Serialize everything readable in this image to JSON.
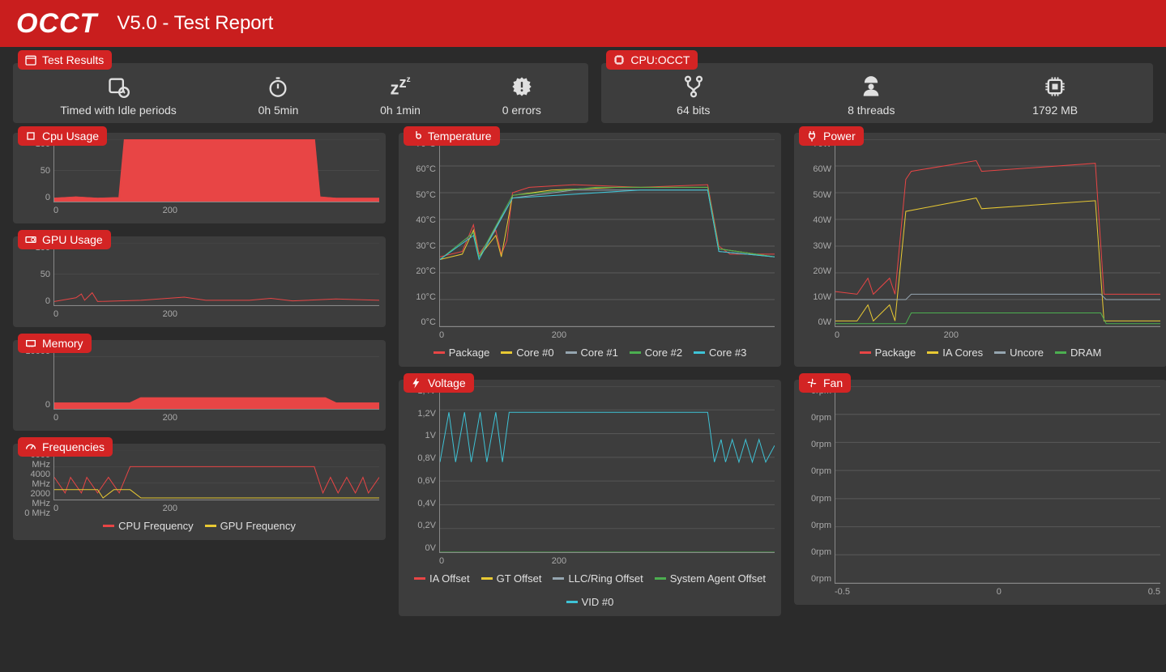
{
  "header": {
    "logo": "OCCT",
    "subtitle": "V5.0 - Test Report"
  },
  "colors": {
    "header_bg": "#c91e1e",
    "badge_bg": "#d32424",
    "panel_bg": "#3d3d3d",
    "page_bg": "#2b2b2b",
    "text": "#e0e0e0",
    "series_red": "#e84545",
    "series_yellow": "#e8c933",
    "series_cyan": "#3ec3d6",
    "series_green": "#4caf50",
    "series_gray": "#95a5b0",
    "grid": "#555555"
  },
  "test_results": {
    "title": "Test Results",
    "items": [
      {
        "icon": "calendar-clock",
        "label": "Timed with Idle periods"
      },
      {
        "icon": "stopwatch",
        "label": "0h 5min"
      },
      {
        "icon": "sleep",
        "label": "0h 1min"
      },
      {
        "icon": "alert",
        "label": "0 errors"
      }
    ]
  },
  "cpu_occt": {
    "title": "CPU:OCCT",
    "items": [
      {
        "icon": "branch",
        "label": "64 bits"
      },
      {
        "icon": "worker",
        "label": "8 threads"
      },
      {
        "icon": "chip",
        "label": "1792 MB"
      }
    ]
  },
  "charts": {
    "cpu_usage": {
      "title": "Cpu Usage",
      "type": "area",
      "ylim": [
        0,
        100
      ],
      "yticks": [
        0,
        50,
        100
      ],
      "xlim": [
        0,
        300
      ],
      "xticks": [
        0,
        200
      ],
      "series": [
        {
          "name": "cpu",
          "color": "#e84545",
          "fill": true,
          "data": [
            [
              0,
              6
            ],
            [
              20,
              8
            ],
            [
              40,
              6
            ],
            [
              60,
              7
            ],
            [
              65,
              100
            ],
            [
              240,
              100
            ],
            [
              245,
              8
            ],
            [
              260,
              6
            ],
            [
              300,
              6
            ]
          ]
        }
      ]
    },
    "gpu_usage": {
      "title": "GPU Usage",
      "type": "line",
      "ylim": [
        0,
        100
      ],
      "yticks": [
        0,
        50,
        100
      ],
      "xlim": [
        0,
        300
      ],
      "xticks": [
        0,
        200
      ],
      "series": [
        {
          "name": "gpu",
          "color": "#e84545",
          "data": [
            [
              0,
              6
            ],
            [
              20,
              12
            ],
            [
              25,
              18
            ],
            [
              28,
              8
            ],
            [
              35,
              20
            ],
            [
              40,
              6
            ],
            [
              80,
              8
            ],
            [
              120,
              13
            ],
            [
              140,
              8
            ],
            [
              180,
              8
            ],
            [
              200,
              11
            ],
            [
              220,
              7
            ],
            [
              260,
              10
            ],
            [
              300,
              8
            ]
          ]
        }
      ]
    },
    "memory": {
      "title": "Memory",
      "type": "area",
      "ylim": [
        0,
        12000
      ],
      "yticks": [
        0,
        10000
      ],
      "xlim": [
        0,
        300
      ],
      "xticks": [
        0,
        200
      ],
      "series": [
        {
          "name": "mem",
          "color": "#e84545",
          "fill": true,
          "data": [
            [
              0,
              1200
            ],
            [
              70,
              1200
            ],
            [
              80,
              2200
            ],
            [
              250,
              2200
            ],
            [
              260,
              1200
            ],
            [
              300,
              1200
            ]
          ]
        }
      ]
    },
    "frequencies": {
      "title": "Frequencies",
      "type": "line",
      "ylim": [
        0,
        6000
      ],
      "yticks": [
        0,
        2000,
        4000,
        6000
      ],
      "ylabel_suffix": " MHz",
      "xlim": [
        0,
        300
      ],
      "xticks": [
        0,
        200
      ],
      "legend": [
        {
          "label": "CPU Frequency",
          "color": "#e84545"
        },
        {
          "label": "GPU Frequency",
          "color": "#e8c933"
        }
      ],
      "series": [
        {
          "name": "cpu_freq",
          "color": "#e84545",
          "data": [
            [
              0,
              2700
            ],
            [
              10,
              800
            ],
            [
              15,
              2700
            ],
            [
              25,
              800
            ],
            [
              30,
              2700
            ],
            [
              40,
              800
            ],
            [
              50,
              2700
            ],
            [
              60,
              800
            ],
            [
              70,
              4000
            ],
            [
              240,
              4000
            ],
            [
              248,
              800
            ],
            [
              255,
              2700
            ],
            [
              262,
              800
            ],
            [
              270,
              2700
            ],
            [
              278,
              800
            ],
            [
              285,
              2700
            ],
            [
              290,
              800
            ],
            [
              300,
              2700
            ]
          ]
        },
        {
          "name": "gpu_freq",
          "color": "#e8c933",
          "data": [
            [
              0,
              1200
            ],
            [
              40,
              1200
            ],
            [
              45,
              200
            ],
            [
              55,
              1200
            ],
            [
              70,
              1200
            ],
            [
              80,
              200
            ],
            [
              300,
              200
            ]
          ]
        }
      ]
    },
    "temperature": {
      "title": "Temperature",
      "type": "line",
      "ylim": [
        0,
        70
      ],
      "yticks": [
        0,
        10,
        20,
        30,
        40,
        50,
        60,
        70
      ],
      "ylabel_suffix": "°C",
      "xlim": [
        0,
        300
      ],
      "xticks": [
        0,
        200
      ],
      "legend": [
        {
          "label": "Package",
          "color": "#e84545"
        },
        {
          "label": "Core #0",
          "color": "#e8c933"
        },
        {
          "label": "Core #1",
          "color": "#95a5b0"
        },
        {
          "label": "Core #2",
          "color": "#4caf50"
        },
        {
          "label": "Core #3",
          "color": "#3ec3d6"
        }
      ],
      "series": [
        {
          "name": "pkg",
          "color": "#e84545",
          "data": [
            [
              0,
              26
            ],
            [
              20,
              28
            ],
            [
              30,
              38
            ],
            [
              35,
              27
            ],
            [
              50,
              36
            ],
            [
              55,
              27
            ],
            [
              60,
              32
            ],
            [
              65,
              50
            ],
            [
              80,
              52
            ],
            [
              120,
              53
            ],
            [
              180,
              52
            ],
            [
              240,
              53
            ],
            [
              250,
              30
            ],
            [
              260,
              27
            ],
            [
              300,
              27
            ]
          ]
        },
        {
          "name": "c0",
          "color": "#e8c933",
          "data": [
            [
              0,
              25
            ],
            [
              20,
              27
            ],
            [
              30,
              36
            ],
            [
              35,
              26
            ],
            [
              50,
              34
            ],
            [
              55,
              26
            ],
            [
              65,
              49
            ],
            [
              100,
              51
            ],
            [
              160,
              52
            ],
            [
              240,
              52
            ],
            [
              250,
              29
            ],
            [
              300,
              26
            ]
          ]
        },
        {
          "name": "c1",
          "color": "#95a5b0",
          "data": [
            [
              0,
              25
            ],
            [
              30,
              35
            ],
            [
              35,
              26
            ],
            [
              65,
              48
            ],
            [
              120,
              51
            ],
            [
              240,
              51
            ],
            [
              250,
              28
            ],
            [
              300,
              26
            ]
          ]
        },
        {
          "name": "c2",
          "color": "#4caf50",
          "data": [
            [
              0,
              25
            ],
            [
              30,
              35
            ],
            [
              35,
              26
            ],
            [
              65,
              49
            ],
            [
              140,
              52
            ],
            [
              240,
              52
            ],
            [
              250,
              29
            ],
            [
              300,
              26
            ]
          ]
        },
        {
          "name": "c3",
          "color": "#3ec3d6",
          "data": [
            [
              0,
              25
            ],
            [
              30,
              34
            ],
            [
              35,
              25
            ],
            [
              65,
              48
            ],
            [
              180,
              51
            ],
            [
              240,
              51
            ],
            [
              250,
              28
            ],
            [
              300,
              26
            ]
          ]
        }
      ]
    },
    "power": {
      "title": "Power",
      "type": "line",
      "ylim": [
        0,
        70
      ],
      "yticks": [
        0,
        10,
        20,
        30,
        40,
        50,
        60,
        70
      ],
      "ylabel_suffix": "W",
      "xlim": [
        0,
        300
      ],
      "xticks": [
        0,
        200
      ],
      "legend": [
        {
          "label": "Package",
          "color": "#e84545"
        },
        {
          "label": "IA Cores",
          "color": "#e8c933"
        },
        {
          "label": "Uncore",
          "color": "#95a5b0"
        },
        {
          "label": "DRAM",
          "color": "#4caf50"
        }
      ],
      "series": [
        {
          "name": "pkg",
          "color": "#e84545",
          "data": [
            [
              0,
              13
            ],
            [
              20,
              12
            ],
            [
              30,
              18
            ],
            [
              35,
              12
            ],
            [
              50,
              18
            ],
            [
              55,
              12
            ],
            [
              65,
              55
            ],
            [
              70,
              58
            ],
            [
              130,
              62
            ],
            [
              135,
              58
            ],
            [
              240,
              61
            ],
            [
              248,
              12
            ],
            [
              300,
              12
            ]
          ]
        },
        {
          "name": "ia",
          "color": "#e8c933",
          "data": [
            [
              0,
              2
            ],
            [
              20,
              2
            ],
            [
              30,
              8
            ],
            [
              35,
              2
            ],
            [
              50,
              8
            ],
            [
              55,
              2
            ],
            [
              65,
              43
            ],
            [
              130,
              48
            ],
            [
              135,
              44
            ],
            [
              240,
              47
            ],
            [
              248,
              2
            ],
            [
              300,
              2
            ]
          ]
        },
        {
          "name": "uncore",
          "color": "#95a5b0",
          "data": [
            [
              0,
              10
            ],
            [
              65,
              10
            ],
            [
              70,
              12
            ],
            [
              245,
              12
            ],
            [
              250,
              10
            ],
            [
              300,
              10
            ]
          ]
        },
        {
          "name": "dram",
          "color": "#4caf50",
          "data": [
            [
              0,
              1
            ],
            [
              65,
              1
            ],
            [
              70,
              5
            ],
            [
              245,
              5
            ],
            [
              250,
              1
            ],
            [
              300,
              1
            ]
          ]
        }
      ]
    },
    "voltage": {
      "title": "Voltage",
      "type": "line",
      "ylim": [
        0,
        1.4
      ],
      "yticks": [
        0,
        0.2,
        0.4,
        0.6,
        0.8,
        1.0,
        1.2,
        1.4
      ],
      "ylabel_map": [
        "0V",
        "0,2V",
        "0,4V",
        "0,6V",
        "0,8V",
        "1V",
        "1,2V",
        "1,4V"
      ],
      "xlim": [
        0,
        300
      ],
      "xticks": [
        0,
        200
      ],
      "legend": [
        {
          "label": "IA Offset",
          "color": "#e84545"
        },
        {
          "label": "GT Offset",
          "color": "#e8c933"
        },
        {
          "label": "LLC/Ring Offset",
          "color": "#95a5b0"
        },
        {
          "label": "System Agent Offset",
          "color": "#4caf50"
        },
        {
          "label": "VID #0",
          "color": "#3ec3d6"
        }
      ],
      "series": [
        {
          "name": "ia_off",
          "color": "#e84545",
          "data": [
            [
              0,
              0
            ],
            [
              300,
              0
            ]
          ]
        },
        {
          "name": "gt_off",
          "color": "#e8c933",
          "data": [
            [
              0,
              0
            ],
            [
              300,
              0
            ]
          ]
        },
        {
          "name": "llc",
          "color": "#95a5b0",
          "data": [
            [
              0,
              0
            ],
            [
              300,
              0
            ]
          ]
        },
        {
          "name": "sa",
          "color": "#4caf50",
          "data": [
            [
              0,
              0
            ],
            [
              300,
              0
            ]
          ]
        },
        {
          "name": "vid",
          "color": "#3ec3d6",
          "data": [
            [
              0,
              0.76
            ],
            [
              8,
              1.18
            ],
            [
              14,
              0.76
            ],
            [
              22,
              1.18
            ],
            [
              28,
              0.76
            ],
            [
              36,
              1.18
            ],
            [
              42,
              0.76
            ],
            [
              50,
              1.18
            ],
            [
              56,
              0.76
            ],
            [
              62,
              1.18
            ],
            [
              240,
              1.18
            ],
            [
              246,
              0.76
            ],
            [
              252,
              0.95
            ],
            [
              256,
              0.76
            ],
            [
              262,
              0.95
            ],
            [
              268,
              0.76
            ],
            [
              274,
              0.95
            ],
            [
              280,
              0.76
            ],
            [
              286,
              0.95
            ],
            [
              292,
              0.76
            ],
            [
              300,
              0.9
            ]
          ]
        }
      ]
    },
    "fan": {
      "title": "Fan",
      "type": "line",
      "ylim": [
        0,
        7
      ],
      "yticks": [
        0,
        1,
        2,
        3,
        4,
        5,
        6,
        7
      ],
      "ylabel_override": "0rpm",
      "xlim": [
        -0.5,
        0.5
      ],
      "xticks_labels": [
        "-0.5",
        "0",
        "0.5"
      ],
      "series": []
    }
  }
}
